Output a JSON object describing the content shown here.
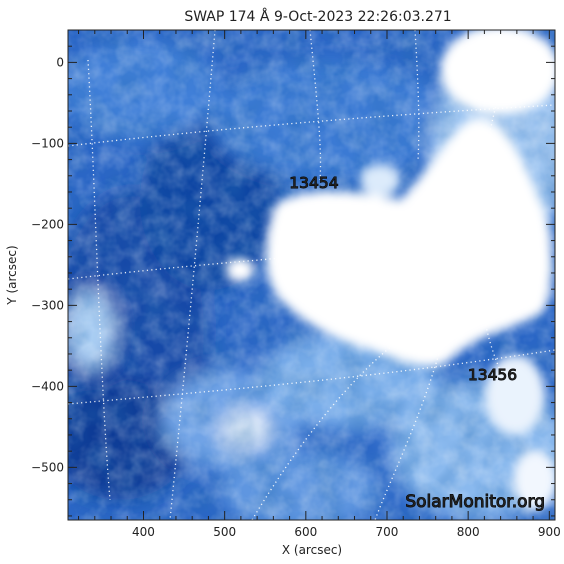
{
  "title": "SWAP  174 Å   9-Oct-2023  22:26:03.271",
  "axes": {
    "xlabel": "X (arcsec)",
    "ylabel": "Y (arcsec)",
    "xlim": [
      307,
      907
    ],
    "ylim": [
      -565,
      40
    ],
    "x_ticks": [
      400,
      500,
      600,
      700,
      800,
      900
    ],
    "y_ticks": [
      0,
      -100,
      -200,
      -300,
      -400,
      -500
    ],
    "x_minor_step": 20,
    "y_minor_step": 20
  },
  "regions": [
    {
      "number": "13454",
      "x": 610,
      "y": -155
    },
    {
      "number": "13456",
      "x": 830,
      "y": -392
    }
  ],
  "watermark": "SolarMonitor.org",
  "colors": {
    "deep": "#0b3f9e",
    "mid": "#2f6fd0",
    "light": "#7fb0ea",
    "bright": "#ffffff",
    "grid": "#ffffff",
    "axis": "#222222"
  }
}
